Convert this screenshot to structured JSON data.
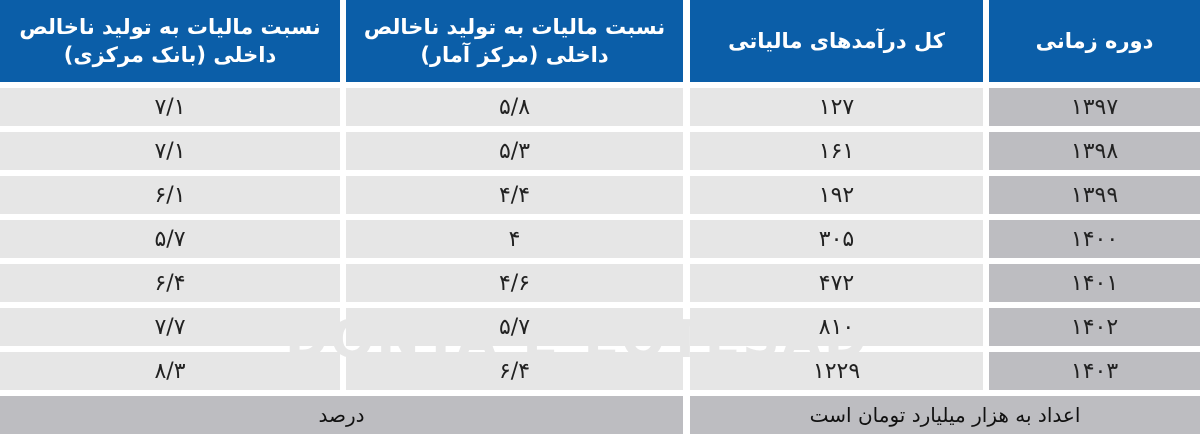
{
  "headers": [
    "دوره زمانی",
    "کل درآمدهای مالیاتی",
    "نسبت مالیات به تولید ناخالص داخلی (مرکز آمار)",
    "نسبت مالیات به تولید ناخالص داخلی (بانک مرکزی)"
  ],
  "rows": [
    [
      "۱۳۹۷",
      "۱۲۷",
      "۵/۸",
      "۷/۱"
    ],
    [
      "۱۳۹۸",
      "۱۶۱",
      "۵/۳",
      "۷/۱"
    ],
    [
      "۱۳۹۹",
      "۱۹۲",
      "۴/۴",
      "۶/۱"
    ],
    [
      "۱۴۰۰",
      "۳۰۵",
      "۴",
      "۵/۷"
    ],
    [
      "۱۴۰۱",
      "۴۷۲",
      "۴/۶",
      "۶/۴"
    ],
    [
      "۱۴۰۲",
      "۸۱۰",
      "۵/۷",
      "۷/۷"
    ],
    [
      "۱۴۰۳",
      "۱۲۲۹",
      "۶/۴",
      "۸/۳"
    ]
  ],
  "footer": {
    "right": "اعداد به هزار میلیارد تومان است",
    "left": "درصد"
  },
  "watermark": "DONYA-E-EQTESAD",
  "colors": {
    "header": "#0b5ea8",
    "cell": "#e6e6e6",
    "year_cell": "#bdbdc1"
  }
}
